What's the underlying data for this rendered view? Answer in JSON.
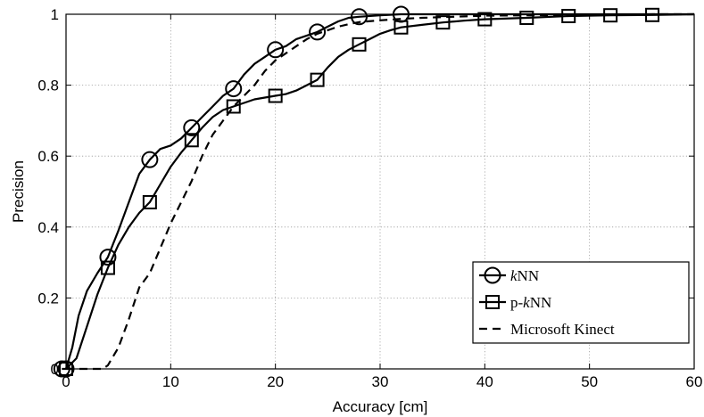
{
  "chart_data": {
    "type": "line",
    "xlabel": "Accuracy [cm]",
    "ylabel": "Precision",
    "xlim": [
      0,
      60
    ],
    "ylim": [
      0,
      1
    ],
    "xticks": [
      "0",
      "10",
      "20",
      "30",
      "40",
      "50",
      "60"
    ],
    "yticks": [
      "0",
      "0.2",
      "0.4",
      "0.6",
      "0.8",
      "1"
    ],
    "grid": true,
    "legend_position": "bottom-right",
    "series": [
      {
        "name": "kNN",
        "legend_prefix": "",
        "legend_italic": "k",
        "legend_suffix": "NN",
        "line_style": "solid",
        "marker": "circle",
        "x": [
          -0.4,
          0,
          0.6,
          1.2,
          2,
          3,
          4,
          5,
          6,
          7,
          8,
          9,
          10,
          11,
          12,
          13,
          14,
          15,
          16,
          17,
          18,
          19,
          20,
          21,
          22,
          23,
          24,
          25,
          26,
          27,
          28,
          30,
          32,
          34,
          36,
          60
        ],
        "y": [
          0,
          0,
          0.06,
          0.15,
          0.22,
          0.27,
          0.315,
          0.39,
          0.47,
          0.55,
          0.59,
          0.62,
          0.63,
          0.65,
          0.68,
          0.71,
          0.74,
          0.77,
          0.79,
          0.83,
          0.86,
          0.88,
          0.9,
          0.91,
          0.93,
          0.94,
          0.95,
          0.965,
          0.98,
          0.99,
          0.993,
          0.997,
          1.0,
          1.0,
          1.0,
          1.0
        ],
        "marker_x": [
          -0.4,
          0,
          4,
          8,
          12,
          16,
          20,
          24,
          28,
          32
        ],
        "marker_y": [
          0,
          0,
          0.315,
          0.59,
          0.68,
          0.79,
          0.9,
          0.95,
          0.993,
          1.0
        ]
      },
      {
        "name": "p-kNN",
        "legend_prefix": "p-",
        "legend_italic": "k",
        "legend_suffix": "NN",
        "line_style": "solid",
        "marker": "square",
        "x": [
          0,
          1,
          2,
          3,
          4,
          5,
          6,
          7,
          8,
          9,
          10,
          11,
          12,
          13,
          14,
          15,
          16,
          17,
          18,
          19,
          20,
          21,
          22,
          23,
          24,
          25,
          26,
          27,
          28,
          29,
          30,
          31,
          32,
          34,
          36,
          38,
          40,
          44,
          48,
          52,
          56,
          60
        ],
        "y": [
          0,
          0.03,
          0.12,
          0.21,
          0.285,
          0.35,
          0.4,
          0.44,
          0.47,
          0.52,
          0.57,
          0.61,
          0.645,
          0.68,
          0.71,
          0.73,
          0.74,
          0.75,
          0.76,
          0.765,
          0.77,
          0.775,
          0.785,
          0.8,
          0.815,
          0.85,
          0.88,
          0.9,
          0.915,
          0.93,
          0.945,
          0.955,
          0.963,
          0.97,
          0.977,
          0.982,
          0.986,
          0.99,
          0.995,
          0.997,
          0.998,
          1.0
        ],
        "marker_x": [
          0,
          4,
          8,
          12,
          16,
          20,
          24,
          28,
          32,
          36,
          40,
          44,
          48,
          52,
          56
        ],
        "marker_y": [
          0,
          0.285,
          0.47,
          0.645,
          0.74,
          0.77,
          0.815,
          0.915,
          0.963,
          0.977,
          0.986,
          0.99,
          0.995,
          0.997,
          0.998
        ]
      },
      {
        "name": "Microsoft Kinect",
        "legend_prefix": "Microsoft Kinect",
        "legend_italic": "",
        "legend_suffix": "",
        "line_style": "dashed",
        "marker": "none",
        "x": [
          0,
          3.5,
          4,
          5,
          6,
          7,
          8,
          9,
          10,
          11,
          12,
          13,
          14,
          15,
          16,
          17,
          18,
          19,
          20,
          21,
          22,
          23,
          24,
          25,
          26,
          27,
          28,
          30,
          32,
          34,
          36,
          38,
          40,
          44,
          48,
          52,
          56,
          60
        ],
        "y": [
          0,
          0,
          0.01,
          0.06,
          0.14,
          0.23,
          0.27,
          0.34,
          0.41,
          0.47,
          0.53,
          0.6,
          0.66,
          0.7,
          0.74,
          0.77,
          0.8,
          0.84,
          0.87,
          0.89,
          0.91,
          0.93,
          0.945,
          0.955,
          0.965,
          0.972,
          0.978,
          0.983,
          0.987,
          0.99,
          0.992,
          0.994,
          0.996,
          0.997,
          0.998,
          0.999,
          1.0,
          1.0
        ]
      }
    ]
  }
}
